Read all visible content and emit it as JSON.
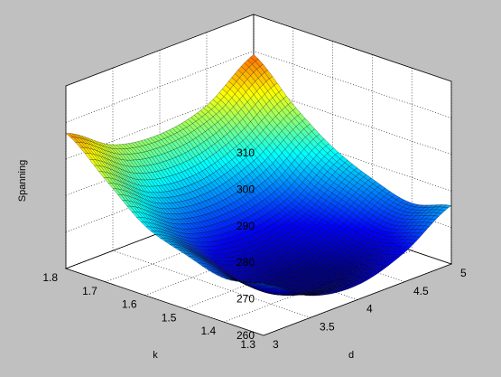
{
  "figure": {
    "background_color": "#c0c0c0",
    "axes_color": "#ffffff",
    "grid": true,
    "colormap": "jet"
  },
  "chart_data": {
    "type": "surface",
    "title": "",
    "xlabel": "k",
    "ylabel": "d",
    "zlabel": "Spanning",
    "xlim": [
      1.3,
      1.8
    ],
    "ylim": [
      3,
      5
    ],
    "zlim": [
      260,
      310
    ],
    "x_ticks": [
      "1.3",
      "1.4",
      "1.5",
      "1.6",
      "1.7",
      "1.8"
    ],
    "y_ticks": [
      "3",
      "3.5",
      "4",
      "4.5",
      "5"
    ],
    "z_ticks": [
      "260",
      "270",
      "280",
      "290",
      "300",
      "310"
    ],
    "x_grid": [
      1.3,
      1.4,
      1.5,
      1.6,
      1.7,
      1.8
    ],
    "y_grid": [
      3,
      3.5,
      4,
      4.5,
      5
    ],
    "z_values": [
      [
        274,
        266,
        264,
        268,
        276
      ],
      [
        272,
        263,
        261,
        265,
        273
      ],
      [
        275,
        266,
        264,
        268,
        276
      ],
      [
        279,
        271,
        269,
        272,
        281
      ],
      [
        288,
        279,
        277,
        281,
        289
      ],
      [
        297,
        289,
        287,
        290,
        299
      ]
    ]
  }
}
